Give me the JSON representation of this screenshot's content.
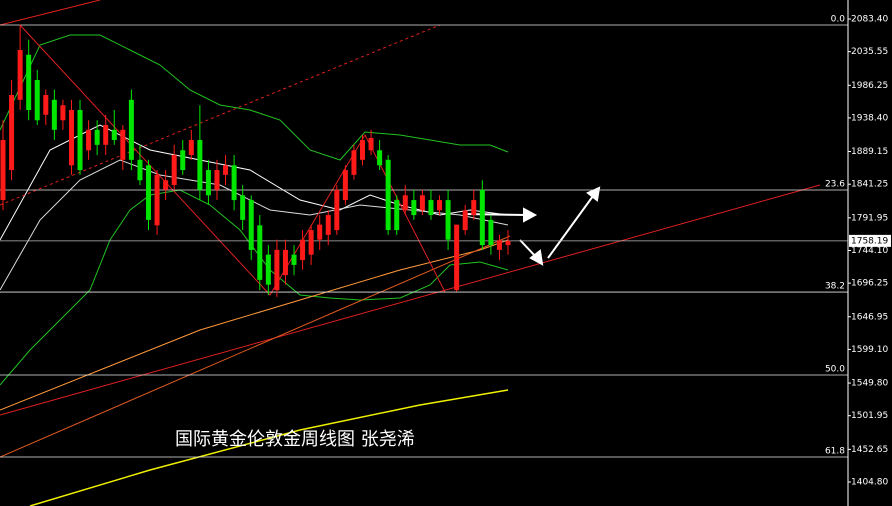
{
  "chart_data": {
    "type": "candlestick",
    "title": "国际黄金伦敦金周线图  张尧浠",
    "open": [
      1818,
      1862,
      1965,
      2031,
      1994,
      1943,
      1965,
      1935,
      1869,
      1950,
      1891,
      1921,
      1899,
      1921,
      1877,
      1965,
      1877,
      1869,
      1781,
      1833,
      1840,
      1891,
      1884,
      1906,
      1862,
      1833,
      1855,
      1869,
      1825,
      1818,
      1781,
      1738,
      1686,
      1708,
      1738,
      1730,
      1738,
      1760,
      1767,
      1774,
      1818,
      1855,
      1877,
      1891,
      1891,
      1877,
      1818,
      1803,
      1818,
      1803,
      1818,
      1803,
      1818,
      1686,
      1774,
      1796,
      1833,
      1789,
      1745,
      1752
    ],
    "high": [
      1935,
      1994,
      2075,
      2053,
      2009,
      1980,
      1980,
      1965,
      1965,
      1965,
      1935,
      1935,
      1943,
      1950,
      1928,
      1980,
      1899,
      1877,
      1862,
      1862,
      1899,
      1906,
      1921,
      1957,
      1877,
      1877,
      1884,
      1884,
      1840,
      1825,
      1796,
      1752,
      1760,
      1760,
      1752,
      1774,
      1781,
      1796,
      1803,
      1840,
      1869,
      1899,
      1913,
      1921,
      1906,
      1884,
      1825,
      1840,
      1833,
      1833,
      1833,
      1825,
      1833,
      1782,
      1811,
      1833,
      1847,
      1796,
      1767,
      1774
    ],
    "low": [
      1803,
      1847,
      1950,
      1935,
      1928,
      1928,
      1906,
      1921,
      1855,
      1855,
      1877,
      1884,
      1884,
      1899,
      1862,
      1862,
      1840,
      1774,
      1767,
      1818,
      1833,
      1855,
      1877,
      1818,
      1811,
      1818,
      1840,
      1803,
      1774,
      1730,
      1686,
      1679,
      1676,
      1694,
      1708,
      1716,
      1723,
      1745,
      1752,
      1767,
      1811,
      1848,
      1869,
      1884,
      1862,
      1767,
      1767,
      1796,
      1789,
      1796,
      1789,
      1796,
      1745,
      1684,
      1767,
      1789,
      1745,
      1738,
      1730,
      1738
    ],
    "close": [
      1906,
      1972,
      2038,
      1950,
      1935,
      1972,
      1921,
      1957,
      1950,
      1862,
      1921,
      1899,
      1928,
      1906,
      1921,
      1877,
      1847,
      1789,
      1855,
      1847,
      1884,
      1862,
      1906,
      1833,
      1825,
      1862,
      1869,
      1818,
      1789,
      1745,
      1701,
      1694,
      1745,
      1745,
      1723,
      1760,
      1774,
      1782,
      1796,
      1833,
      1862,
      1891,
      1906,
      1909,
      1869,
      1774,
      1774,
      1825,
      1796,
      1825,
      1796,
      1818,
      1760,
      1782,
      1803,
      1818,
      1752,
      1752,
      1759,
      1758.19
    ],
    "up_color": "#ff1a1a",
    "down_color": "#00e600",
    "ylim": [
      1369.6,
      2111.25
    ],
    "yticks": [
      {
        "value": 2083.4,
        "label": "2083.40"
      },
      2035.55,
      1986.25,
      {
        "value": 1938.4,
        "label": "1938.40"
      },
      1889.15,
      1841.25,
      1791.95,
      {
        "value": 1744.1,
        "label": "1744.10"
      },
      1696.25,
      1646.95,
      {
        "value": 1599.1,
        "label": "1599.10"
      },
      {
        "value": 1549.8,
        "label": "1549.80"
      },
      1501.95,
      1452.65,
      {
        "value": 1404.8,
        "label": "1404.80"
      }
    ],
    "fib_levels": [
      {
        "label": "0.0",
        "price": 2074.6
      },
      {
        "label": "23.6",
        "price": 1832.8
      },
      {
        "label": "38.2",
        "price": 1683.2
      },
      {
        "label": "50.0",
        "price": 1561.6
      },
      {
        "label": "61.8",
        "price": 1441.4
      }
    ],
    "current_price": 1758.19
  }
}
